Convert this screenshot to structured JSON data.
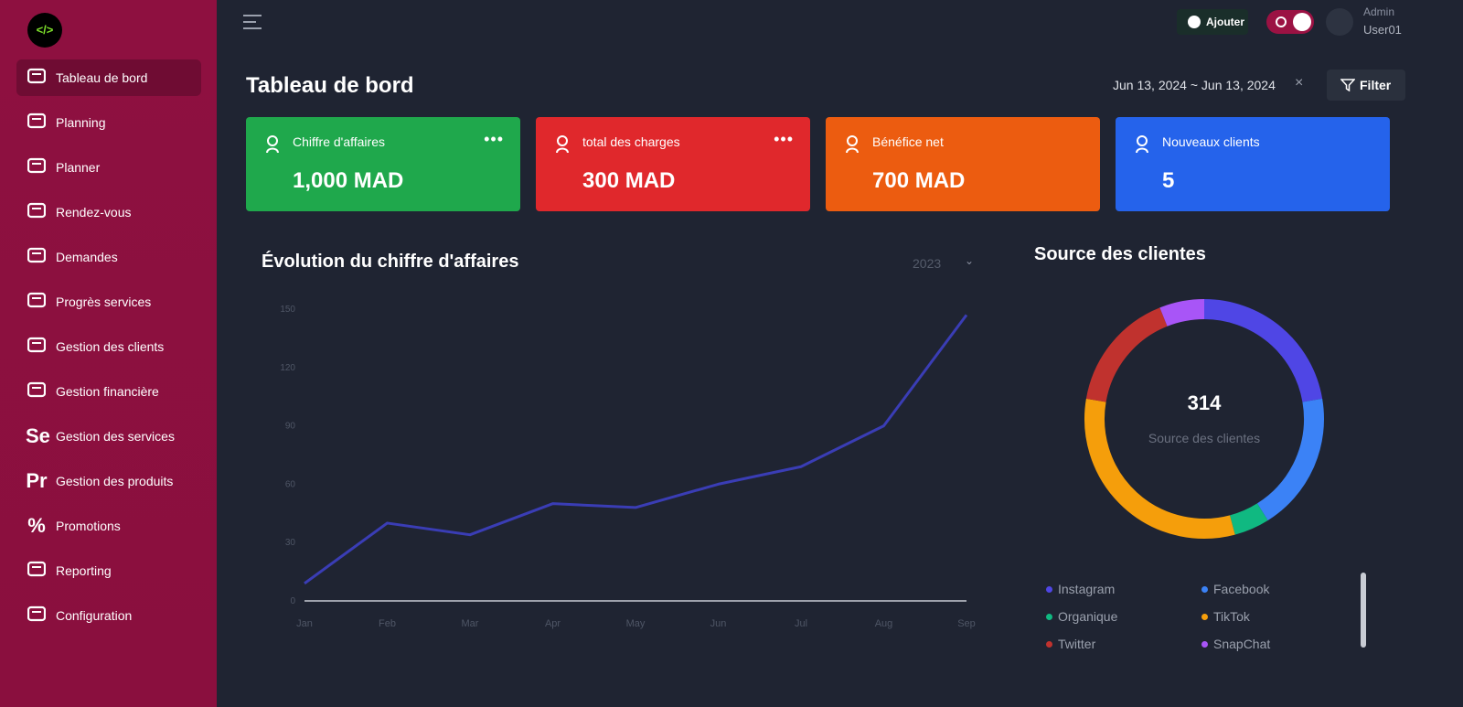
{
  "sidebar": {
    "logo": "</>",
    "items": [
      {
        "label": "Tableau de bord"
      },
      {
        "label": "Planning"
      },
      {
        "label": "Planner"
      },
      {
        "label": "Rendez-vous"
      },
      {
        "label": "Demandes"
      },
      {
        "label": "Progrès services"
      },
      {
        "label": "Gestion des clients"
      },
      {
        "label": "Gestion financière"
      },
      {
        "icon": "Se",
        "label": "Gestion des services"
      },
      {
        "icon": "Pr",
        "label": "Gestion des produits"
      },
      {
        "icon": "%",
        "label": "Promotions"
      },
      {
        "label": "Reporting"
      },
      {
        "label": "Configuration"
      }
    ]
  },
  "header": {
    "add_button": "Ajouter",
    "user": {
      "role": "Admin",
      "name": "User01"
    }
  },
  "page": {
    "title": "Tableau de bord",
    "date_range": "Jun 13, 2024 ~ Jun 13, 2024",
    "filter_button": "Filter"
  },
  "cards": [
    {
      "label": "Chiffre d'affaires",
      "value": "1,000 MAD",
      "color": "#1fa84c"
    },
    {
      "label": "total des charges",
      "value": "300 MAD",
      "color": "#e0282c"
    },
    {
      "label": "Bénéfice net",
      "value": "700 MAD",
      "color": "#ec5c10"
    },
    {
      "label": "Nouveaux clients",
      "value": "5",
      "color": "#2563eb"
    }
  ],
  "line_chart": {
    "type": "line",
    "title": "Évolution du chiffre d'affaires",
    "year": "2023",
    "categories": [
      "Jan",
      "Feb",
      "Mar",
      "Apr",
      "May",
      "Jun",
      "Jul",
      "Aug",
      "Sep"
    ],
    "values": [
      9,
      40,
      34,
      50,
      48,
      60,
      69,
      90,
      147
    ],
    "ylim": [
      0,
      150
    ],
    "yticks": [
      0,
      30,
      60,
      90,
      120,
      150
    ],
    "color": "#3a3db5"
  },
  "donut_chart": {
    "type": "pie",
    "title": "Source des clientes",
    "total": "314",
    "center_label": "Source des clientes",
    "categories": [
      "Instagram",
      "Facebook",
      "Organique",
      "TikTok",
      "Twitter",
      "SnapChat"
    ],
    "values": [
      70,
      59,
      15,
      100,
      51,
      19
    ],
    "colors": [
      "#4f46e5",
      "#3b82f6",
      "#10b981",
      "#f59e0b",
      "#c0322e",
      "#a855f7"
    ]
  }
}
